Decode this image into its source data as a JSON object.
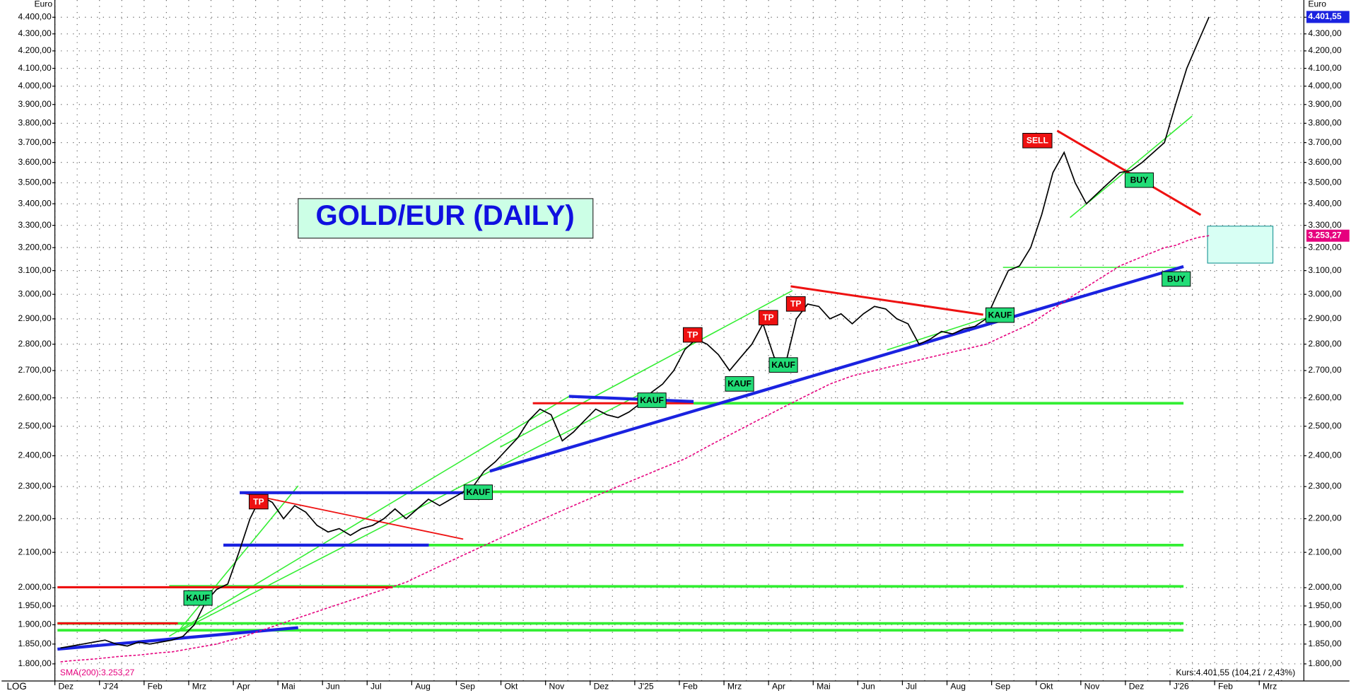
{
  "chart_data": {
    "type": "line",
    "title": "GOLD/EUR (DAILY)",
    "y_axis_label": "Euro",
    "scale_label": "LOG",
    "log_scale": true,
    "grid": true,
    "categories": [
      "Dez",
      null,
      null,
      null,
      "J'24",
      null,
      null,
      null,
      "Feb",
      null,
      null,
      null,
      "Mrz",
      null,
      null,
      null,
      "Apr",
      null,
      null,
      null,
      "Mai",
      null,
      null,
      null,
      "Jun",
      null,
      null,
      null,
      "Jul",
      null,
      null,
      null,
      "Aug",
      null,
      null,
      null,
      "Sep",
      null,
      null,
      null,
      "Okt",
      null,
      null,
      null,
      "Nov",
      null,
      null,
      null,
      "Dez",
      null,
      null,
      null,
      "J'25",
      null,
      null,
      null,
      "Feb",
      null,
      null,
      null,
      "Mrz",
      null,
      null,
      null,
      "Apr",
      null,
      null,
      null,
      "Mai",
      null,
      null,
      null,
      "Jun",
      null,
      null,
      null,
      "Jul",
      null,
      null,
      null,
      "Aug",
      null,
      null,
      null,
      "Sep",
      null,
      null,
      null,
      "Okt",
      null,
      null,
      null,
      "Nov",
      null,
      null,
      null,
      "Dez",
      null,
      null,
      null,
      "J'26",
      null,
      null,
      null,
      "Feb",
      null,
      null,
      null,
      "Mrz",
      null,
      null,
      null
    ],
    "series": [
      {
        "name": "Kurs",
        "color": "#000000",
        "values": [
          1840,
          1845,
          1850,
          1855,
          1860,
          1850,
          1845,
          1855,
          1850,
          1855,
          1860,
          1870,
          1900,
          1960,
          1995,
          2010,
          2100,
          2200,
          2270,
          2250,
          2200,
          2240,
          2220,
          2180,
          2160,
          2170,
          2150,
          2170,
          2180,
          2200,
          2230,
          2200,
          2230,
          2260,
          2240,
          2260,
          2280,
          2300,
          2350,
          2380,
          2420,
          2460,
          2520,
          2560,
          2540,
          2450,
          2480,
          2520,
          2560,
          2540,
          2530,
          2550,
          2580,
          2620,
          2650,
          2700,
          2780,
          2820,
          2800,
          2760,
          2700,
          2750,
          2800,
          2880,
          2750,
          2720,
          2900,
          2960,
          2950,
          2900,
          2920,
          2880,
          2920,
          2950,
          2940,
          2900,
          2880,
          2800,
          2820,
          2850,
          2840,
          2860,
          2870,
          2900,
          3000,
          3100,
          3120,
          3200,
          3350,
          3550,
          3650,
          3500,
          3400,
          3450,
          3500,
          3550,
          3560,
          3600,
          3650,
          3700,
          3900,
          4100,
          4250,
          4401.55,
          null,
          null,
          null,
          null,
          null,
          null,
          null,
          null
        ]
      },
      {
        "name": "SMA(200)",
        "color": "#e6007e",
        "values": [
          1805,
          1808,
          1810,
          1812,
          1815,
          1818,
          1820,
          1822,
          1825,
          1828,
          1830,
          1835,
          1840,
          1845,
          1850,
          1858,
          1865,
          1875,
          1885,
          1895,
          1905,
          1915,
          1925,
          1935,
          1945,
          1955,
          1965,
          1975,
          1985,
          1995,
          2005,
          2015,
          2030,
          2045,
          2060,
          2075,
          2090,
          2105,
          2120,
          2135,
          2150,
          2165,
          2180,
          2195,
          2210,
          2225,
          2240,
          2255,
          2270,
          2285,
          2300,
          2315,
          2330,
          2345,
          2360,
          2375,
          2390,
          2410,
          2430,
          2450,
          2470,
          2490,
          2510,
          2530,
          2550,
          2570,
          2590,
          2610,
          2630,
          2650,
          2665,
          2680,
          2690,
          2700,
          2710,
          2720,
          2730,
          2740,
          2750,
          2760,
          2770,
          2780,
          2790,
          2800,
          2820,
          2840,
          2860,
          2880,
          2910,
          2940,
          2970,
          3000,
          3030,
          3060,
          3090,
          3120,
          3140,
          3160,
          3180,
          3200,
          3210,
          3230,
          3245,
          3253.27,
          null,
          null,
          null,
          null,
          null,
          null,
          null,
          null
        ]
      }
    ],
    "price_tag": "4.401,55",
    "sma_tag": "3.253,27",
    "sma_legend": "SMA(200):3.253,27",
    "quote": "Kurs:4.401,55 (104,21 / 2,43%)",
    "signals": [
      "KAUF",
      "TP",
      "KAUF",
      "KAUF",
      "TP",
      "KAUF",
      "TP",
      "KAUF",
      "TP",
      "KAUF",
      "SELL",
      "BUY",
      "BUY"
    ],
    "ylim": [
      1758,
      4506
    ],
    "yticks": [
      {
        "value": 1800,
        "label": "1.800,00"
      },
      {
        "value": 1850,
        "label": "1.850,00"
      },
      {
        "value": 1900,
        "label": "1.900,00"
      },
      {
        "value": 1950,
        "label": "1.950,00"
      },
      {
        "value": 2000,
        "label": "2.000,00"
      },
      {
        "value": 2100,
        "label": "2.100,00"
      },
      {
        "value": 2200,
        "label": "2.200,00"
      },
      {
        "value": 2300,
        "label": "2.300,00"
      },
      {
        "value": 2400,
        "label": "2.400,00"
      },
      {
        "value": 2500,
        "label": "2.500,00"
      },
      {
        "value": 2600,
        "label": "2.600,00"
      },
      {
        "value": 2700,
        "label": "2.700,00"
      },
      {
        "value": 2800,
        "label": "2.800,00"
      },
      {
        "value": 2900,
        "label": "2.900,00"
      },
      {
        "value": 3000,
        "label": "3.000,00"
      },
      {
        "value": 3100,
        "label": "3.100,00"
      },
      {
        "value": 3200,
        "label": "3.200,00"
      },
      {
        "value": 3300,
        "label": "3.300,00"
      },
      {
        "value": 3400,
        "label": "3.400,00"
      },
      {
        "value": 3500,
        "label": "3.500,00"
      },
      {
        "value": 3600,
        "label": "3.600,00"
      },
      {
        "value": 3700,
        "label": "3.700,00"
      },
      {
        "value": 3800,
        "label": "3.800,00"
      },
      {
        "value": 3900,
        "label": "3.900,00"
      },
      {
        "value": 4000,
        "label": "4.000,00"
      },
      {
        "value": 4100,
        "label": "4.100,00"
      },
      {
        "value": 4200,
        "label": "4.200,00"
      },
      {
        "value": 4300,
        "label": "4.300,00"
      },
      {
        "value": 4400,
        "label": "4.400,00"
      }
    ]
  }
}
